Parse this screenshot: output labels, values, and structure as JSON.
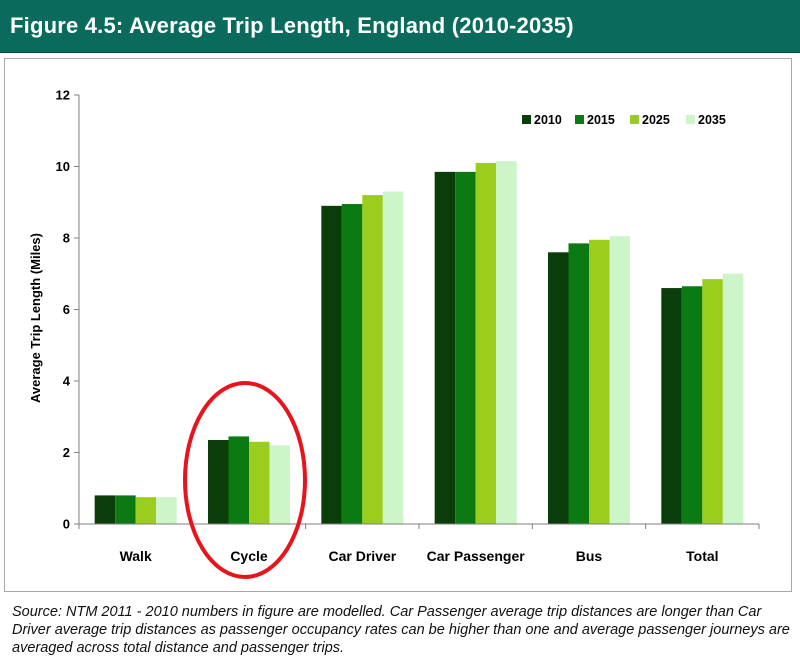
{
  "figure": {
    "title": "Figure 4.5: Average Trip Length, England (2010-2035)",
    "source": "Source: NTM 2011 - 2010 numbers in figure are modelled. Car Passenger average trip distances are longer than Car Driver average trip distances as passenger occupancy rates can be higher than one and average passenger journeys are averaged across total distance and passenger trips."
  },
  "colors": {
    "title_bg": "#0a6b5c",
    "s2010": "#0b3d0b",
    "s2015": "#0c7a12",
    "s2025": "#9acd1c",
    "s2035": "#ccf5c8",
    "annotation_circle": "#e8141c"
  },
  "chart_data": {
    "type": "bar",
    "title": "",
    "xlabel": "",
    "ylabel": "Average Trip Length (Miles)",
    "ylim": [
      0,
      12
    ],
    "yticks": [
      0,
      2,
      4,
      6,
      8,
      10,
      12
    ],
    "grid": false,
    "legend_position": "top-right",
    "categories": [
      "Walk",
      "Cycle",
      "Car Driver",
      "Car Passenger",
      "Bus",
      "Total"
    ],
    "series": [
      {
        "name": "2010",
        "values": [
          0.8,
          2.35,
          8.9,
          9.85,
          7.6,
          6.6
        ]
      },
      {
        "name": "2015",
        "values": [
          0.8,
          2.45,
          8.95,
          9.85,
          7.85,
          6.65
        ]
      },
      {
        "name": "2025",
        "values": [
          0.75,
          2.3,
          9.2,
          10.1,
          7.95,
          6.85
        ]
      },
      {
        "name": "2035",
        "values": [
          0.75,
          2.2,
          9.3,
          10.15,
          8.05,
          7.0
        ]
      }
    ],
    "annotations": [
      {
        "shape": "ellipse",
        "target_category": "Cycle"
      }
    ]
  }
}
